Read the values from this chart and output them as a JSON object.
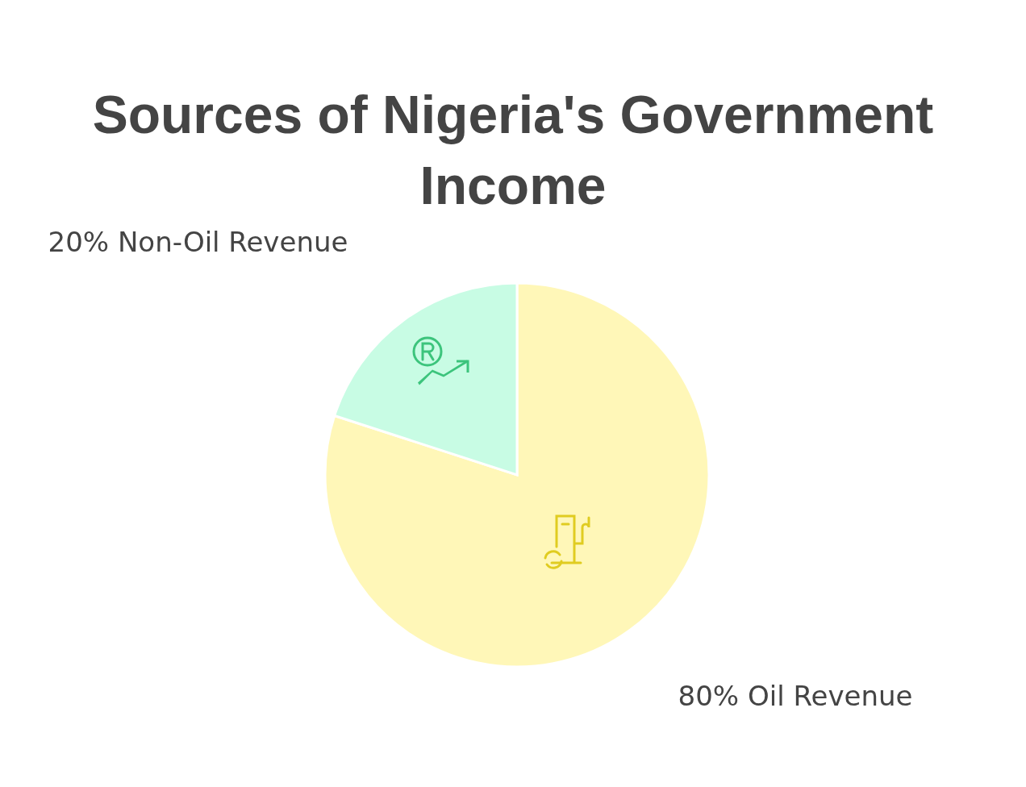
{
  "chart_data": {
    "type": "pie",
    "title": "Sources of Nigeria's Government Income",
    "categories": [
      "Oil Revenue",
      "Non-Oil Revenue"
    ],
    "values": [
      80,
      20
    ],
    "colors": [
      "#fff7b8",
      "#c8fce4"
    ],
    "value_labels": [
      "80%",
      "20%"
    ]
  }
}
